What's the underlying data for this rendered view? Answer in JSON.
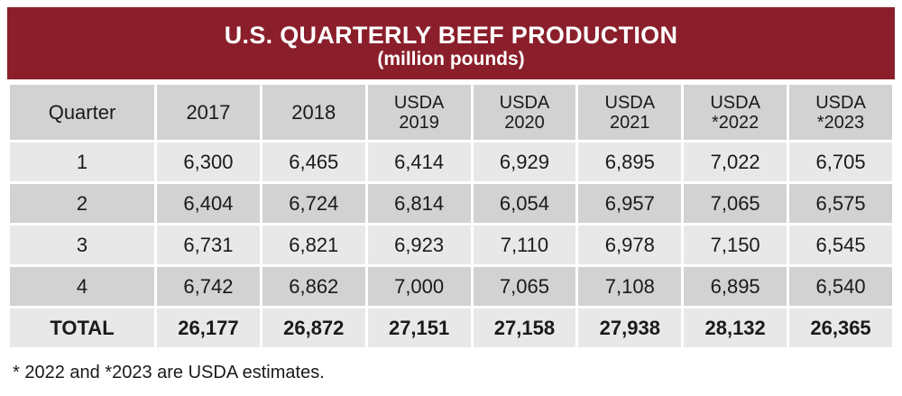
{
  "title": "U.S. QUARTERLY BEEF PRODUCTION",
  "subtitle": "(million pounds)",
  "colors": {
    "header_band": "#8a1f2b",
    "cell_dark": "#d2d2d2",
    "cell_light": "#e8e8e8"
  },
  "columns": [
    {
      "line1": "Quarter",
      "line2": ""
    },
    {
      "line1": "2017",
      "line2": ""
    },
    {
      "line1": "2018",
      "line2": ""
    },
    {
      "line1": "USDA",
      "line2": "2019"
    },
    {
      "line1": "USDA",
      "line2": "2020"
    },
    {
      "line1": "USDA",
      "line2": "2021"
    },
    {
      "line1": "USDA",
      "line2": "*2022"
    },
    {
      "line1": "USDA",
      "line2": "*2023"
    }
  ],
  "rows": [
    [
      "1",
      "6,300",
      "6,465",
      "6,414",
      "6,929",
      "6,895",
      "7,022",
      "6,705"
    ],
    [
      "2",
      "6,404",
      "6,724",
      "6,814",
      "6,054",
      "6,957",
      "7,065",
      "6,575"
    ],
    [
      "3",
      "6,731",
      "6,821",
      "6,923",
      "7,110",
      "6,978",
      "7,150",
      "6,545"
    ],
    [
      "4",
      "6,742",
      "6,862",
      "7,000",
      "7,065",
      "7,108",
      "6,895",
      "6,540"
    ]
  ],
  "total": [
    "TOTAL",
    "26,177",
    "26,872",
    "27,151",
    "27,158",
    "27,938",
    "28,132",
    "26,365"
  ],
  "footnote": "* 2022 and *2023 are USDA estimates.",
  "chart_data": {
    "type": "table",
    "title": "U.S. QUARTERLY BEEF PRODUCTION",
    "subtitle": "(million pounds)",
    "row_header": "Quarter",
    "categories": [
      "1",
      "2",
      "3",
      "4"
    ],
    "series": [
      {
        "name": "2017",
        "values": [
          6300,
          6404,
          6731,
          6742
        ],
        "total": 26177
      },
      {
        "name": "2018",
        "values": [
          6465,
          6724,
          6821,
          6862
        ],
        "total": 26872
      },
      {
        "name": "USDA 2019",
        "values": [
          6414,
          6814,
          6923,
          7000
        ],
        "total": 27151
      },
      {
        "name": "USDA 2020",
        "values": [
          6929,
          6054,
          7110,
          7065
        ],
        "total": 27158
      },
      {
        "name": "USDA 2021",
        "values": [
          6895,
          6957,
          6978,
          7108
        ],
        "total": 27938
      },
      {
        "name": "USDA *2022",
        "values": [
          7022,
          7065,
          7150,
          6895
        ],
        "total": 28132
      },
      {
        "name": "USDA *2023",
        "values": [
          6705,
          6575,
          6545,
          6540
        ],
        "total": 26365
      }
    ]
  }
}
